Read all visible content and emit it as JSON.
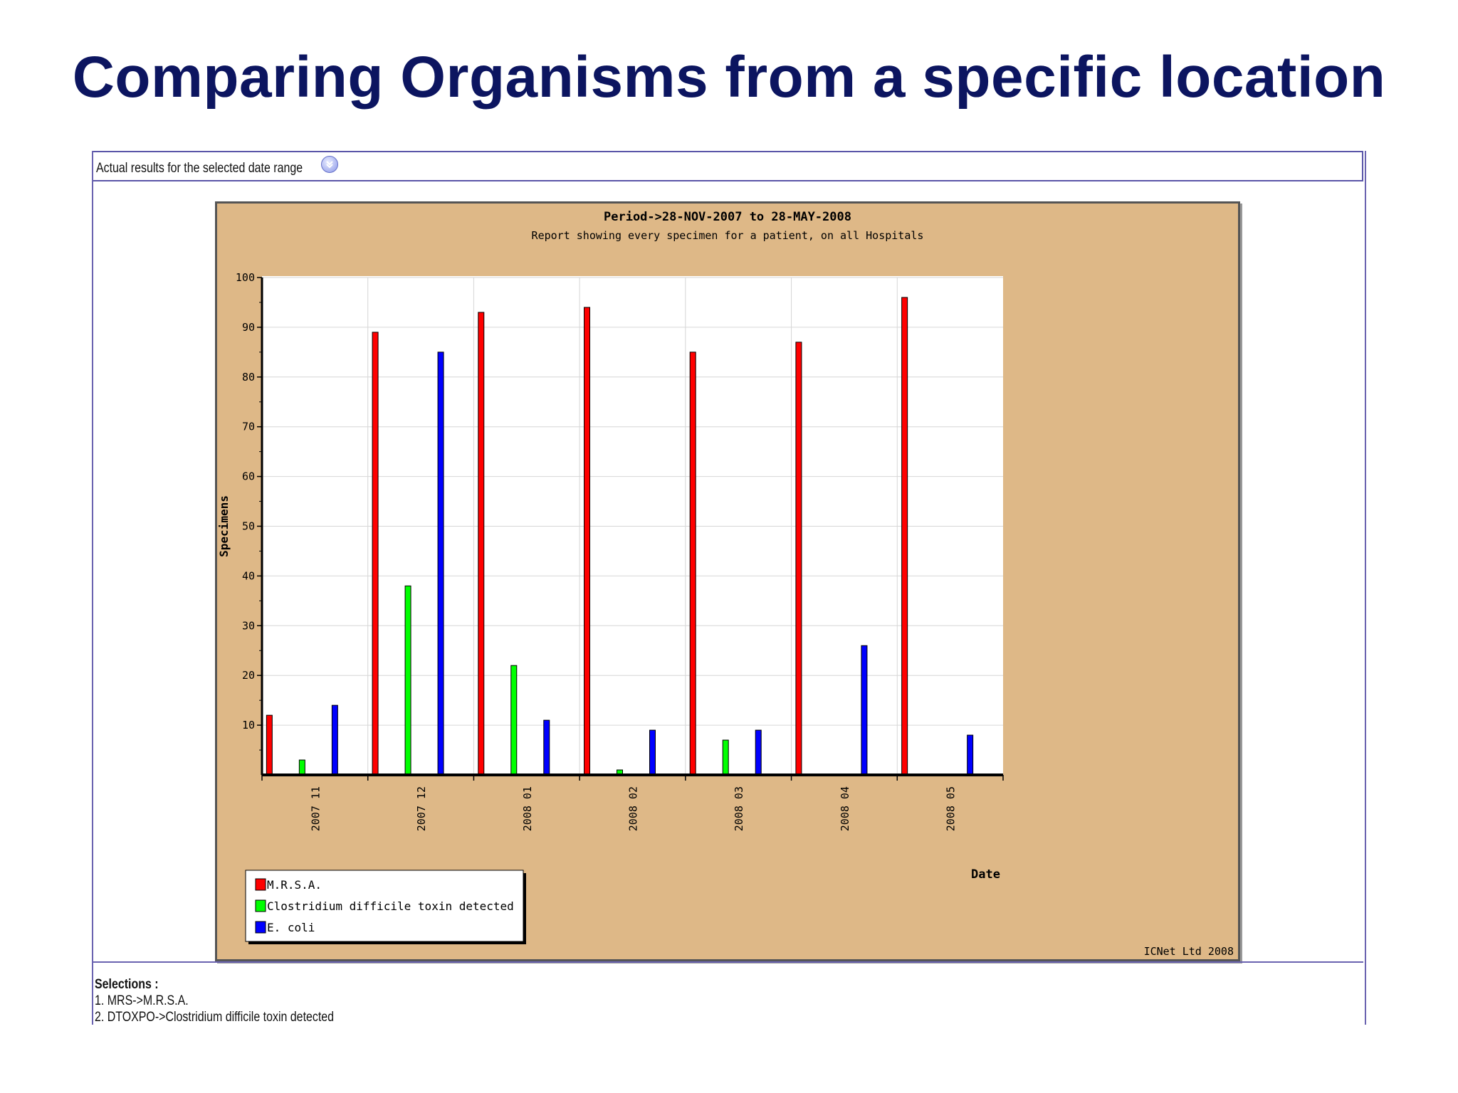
{
  "slide": {
    "title": "Comparing Organisms from a specific location"
  },
  "results_bar": {
    "label": "Actual results for the selected date range",
    "toggle_icon": "chevron-down-circle-icon"
  },
  "selections": {
    "title": "Selections :",
    "items": [
      "1.  MRS->M.R.S.A.",
      "2.  DTOXPO->Clostridium difficile toxin detected"
    ]
  },
  "chart_data": {
    "type": "bar",
    "title": "Period->28-NOV-2007 to 28-MAY-2008",
    "subtitle": "Report showing every specimen for a patient, on all Hospitals",
    "xlabel": "Date",
    "ylabel": "Specimens",
    "ylim": [
      0,
      100
    ],
    "yticks": [
      10,
      20,
      30,
      40,
      50,
      60,
      70,
      80,
      90,
      100
    ],
    "grid": true,
    "legend_position": "bottom-left",
    "credit": "ICNet Ltd 2008",
    "categories": [
      "2007 11",
      "2007 12",
      "2008 01",
      "2008 02",
      "2008 03",
      "2008 04",
      "2008 05"
    ],
    "series": [
      {
        "name": "M.R.S.A.",
        "color": "#ff0000",
        "values": [
          12,
          89,
          93,
          94,
          85,
          87,
          96
        ]
      },
      {
        "name": "Clostridium difficile toxin detected",
        "color": "#00ff00",
        "values": [
          3,
          38,
          22,
          1,
          7,
          0,
          0
        ]
      },
      {
        "name": "E. coli",
        "color": "#0000ff",
        "values": [
          14,
          85,
          11,
          9,
          9,
          26,
          8
        ]
      }
    ]
  }
}
